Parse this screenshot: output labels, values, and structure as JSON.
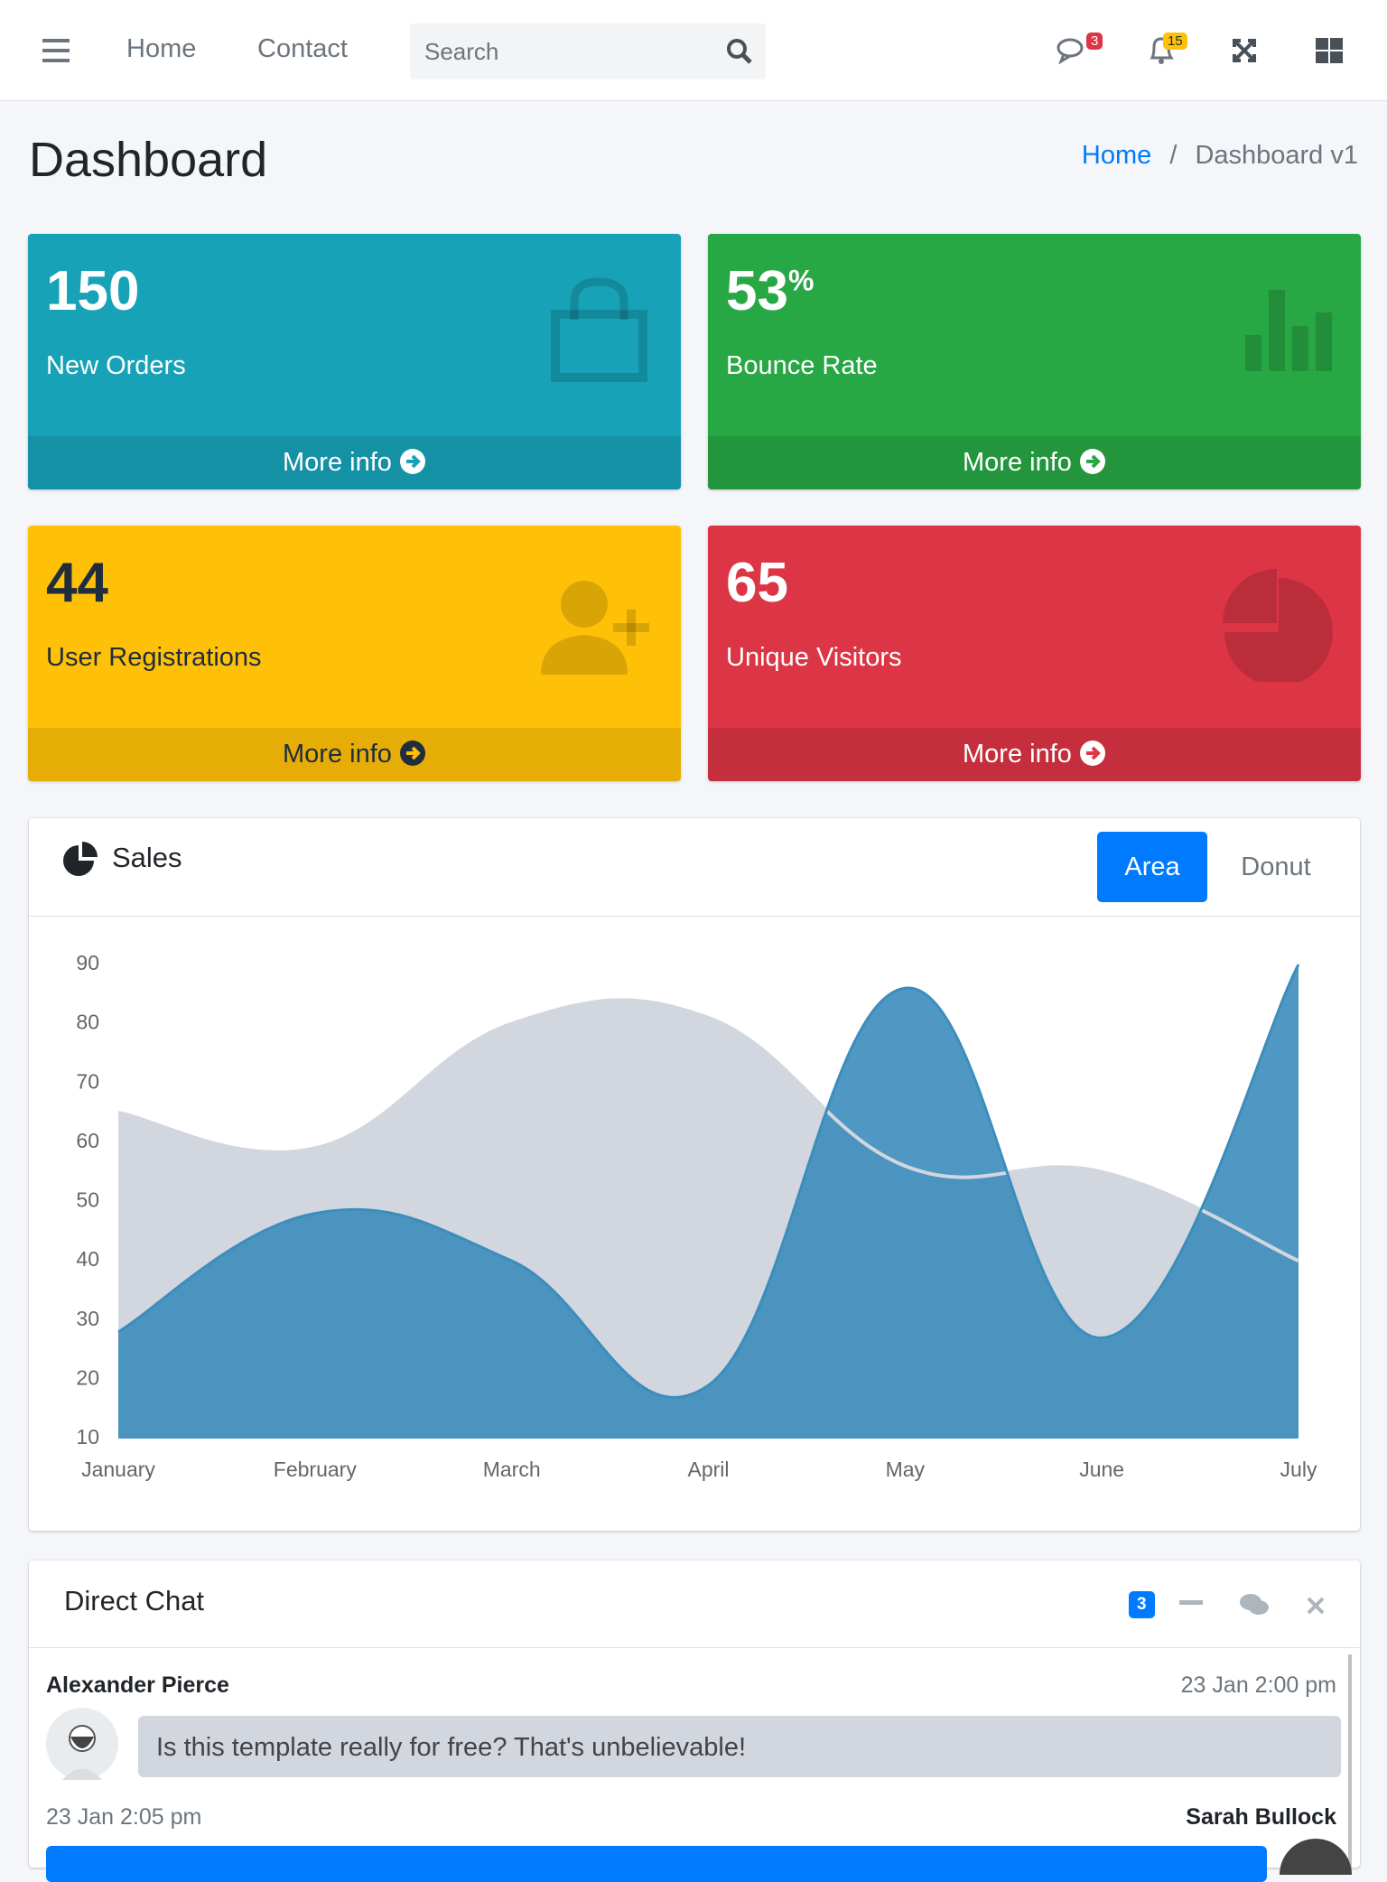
{
  "navbar": {
    "links": [
      "Home",
      "Contact"
    ],
    "search_placeholder": "Search",
    "messages_badge": 3,
    "notifications_badge": 15
  },
  "header": {
    "title": "Dashboard",
    "breadcrumb": [
      "Home",
      "Dashboard v1"
    ]
  },
  "small_boxes": [
    {
      "value": 150,
      "label": "New Orders",
      "link": "More info"
    },
    {
      "value": 53,
      "suffix": "%",
      "label": "Bounce Rate",
      "link": "More info"
    },
    {
      "value": 44,
      "label": "User Registrations",
      "link": "More info"
    },
    {
      "value": 65,
      "label": "Unique Visitors",
      "link": "More info"
    }
  ],
  "sales_card": {
    "title": "Sales",
    "tabs": [
      "Area",
      "Donut"
    ]
  },
  "chart_data": {
    "type": "area",
    "categories": [
      "January",
      "February",
      "March",
      "April",
      "May",
      "June",
      "July"
    ],
    "series": [
      {
        "color": "#d2d6de",
        "values": [
          65,
          59,
          80,
          81,
          56,
          55,
          40
        ]
      },
      {
        "color": "#3c8dbc",
        "values": [
          28,
          48,
          40,
          19,
          86,
          27,
          90
        ]
      }
    ],
    "ylim": [
      10,
      90
    ],
    "yticks": [
      10,
      20,
      30,
      40,
      50,
      60,
      70,
      80,
      90
    ],
    "grid": false
  },
  "direct_chat": {
    "title": "Direct Chat",
    "badge": 3,
    "messages": [
      {
        "name": "Alexander Pierce",
        "time": "23 Jan 2:00 pm",
        "text": "Is this template really for free? That's unbelievable!"
      },
      {
        "name": "Sarah Bullock",
        "time": "23 Jan 2:05 pm"
      }
    ]
  }
}
